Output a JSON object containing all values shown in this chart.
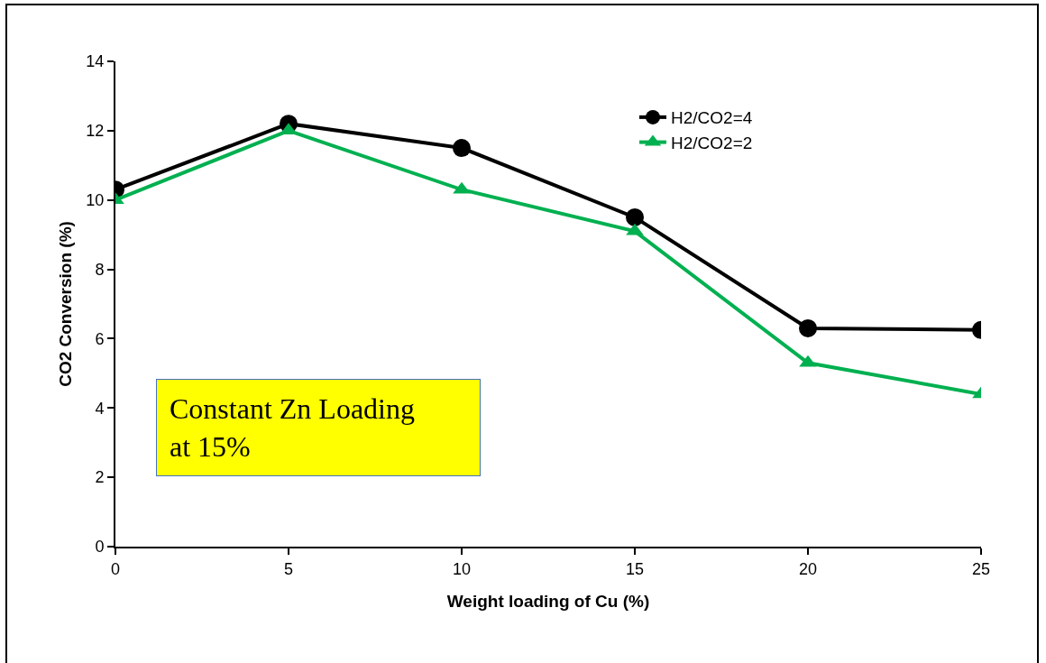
{
  "chart_data": {
    "type": "line",
    "xlabel": "Weight loading of Cu (%)",
    "ylabel": "CO2 Conversion (%)",
    "x": [
      0,
      5,
      10,
      15,
      20,
      25
    ],
    "series": [
      {
        "name": "H2/CO2=4",
        "color": "#000000",
        "marker": "circle",
        "values": [
          10.3,
          12.2,
          11.5,
          9.5,
          6.3,
          6.25
        ]
      },
      {
        "name": "H2/CO2=2",
        "color": "#00b050",
        "marker": "triangle",
        "values": [
          10.0,
          12.0,
          10.3,
          9.1,
          5.3,
          4.4
        ]
      }
    ],
    "xlim": [
      0,
      25
    ],
    "xticks": [
      0,
      5,
      10,
      15,
      20,
      25
    ],
    "ylim": [
      0,
      14
    ],
    "yticks": [
      0,
      2,
      4,
      6,
      8,
      10,
      12,
      14
    ],
    "grid": false,
    "legend": "top right",
    "line_style": "solid",
    "annotations": [
      "Constant Zn Loading\nat 15%"
    ]
  }
}
